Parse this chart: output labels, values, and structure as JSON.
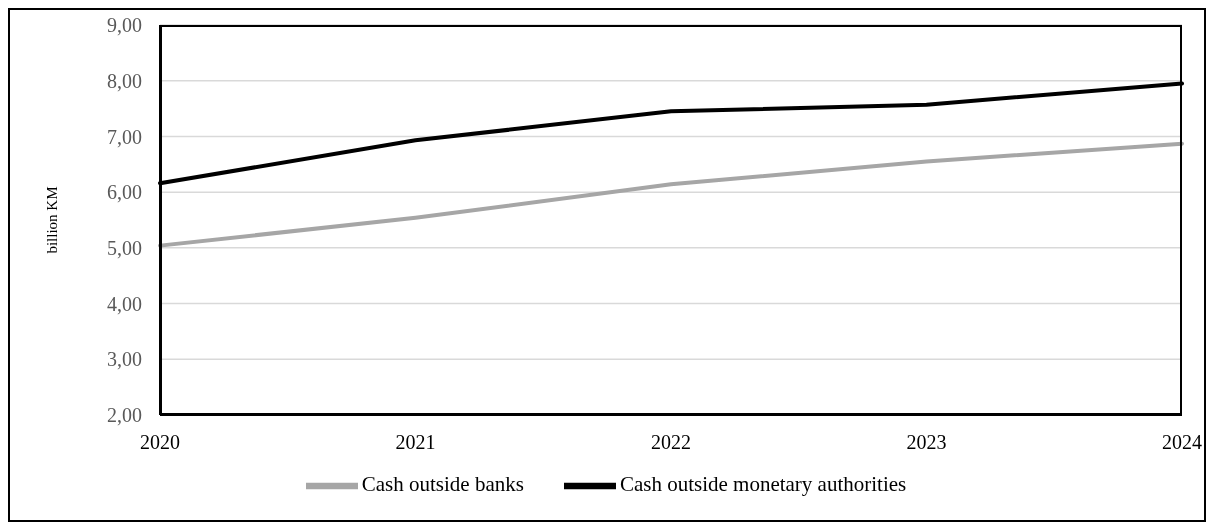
{
  "chart_data": {
    "type": "line",
    "ylabel": "billion KM",
    "categories": [
      "2020",
      "2021",
      "2022",
      "2023",
      "2024"
    ],
    "series": [
      {
        "name": "Cash outside banks",
        "color": "#a6a6a6",
        "values": [
          5.04,
          5.54,
          6.14,
          6.55,
          6.87
        ]
      },
      {
        "name": "Cash outside monetary authorities",
        "color": "#000000",
        "values": [
          6.16,
          6.93,
          7.45,
          7.57,
          7.95
        ]
      }
    ],
    "ylim": [
      2,
      9
    ],
    "yticks": [
      {
        "value": 2,
        "label": "2,00"
      },
      {
        "value": 3,
        "label": "3,00"
      },
      {
        "value": 4,
        "label": "4,00"
      },
      {
        "value": 5,
        "label": "5,00"
      },
      {
        "value": 6,
        "label": "6,00"
      },
      {
        "value": 7,
        "label": "7,00"
      },
      {
        "value": 8,
        "label": "8,00"
      },
      {
        "value": 9,
        "label": "9,00"
      }
    ],
    "grid": "y",
    "legend": "bottom",
    "marker": "none",
    "line_style": "solid"
  }
}
